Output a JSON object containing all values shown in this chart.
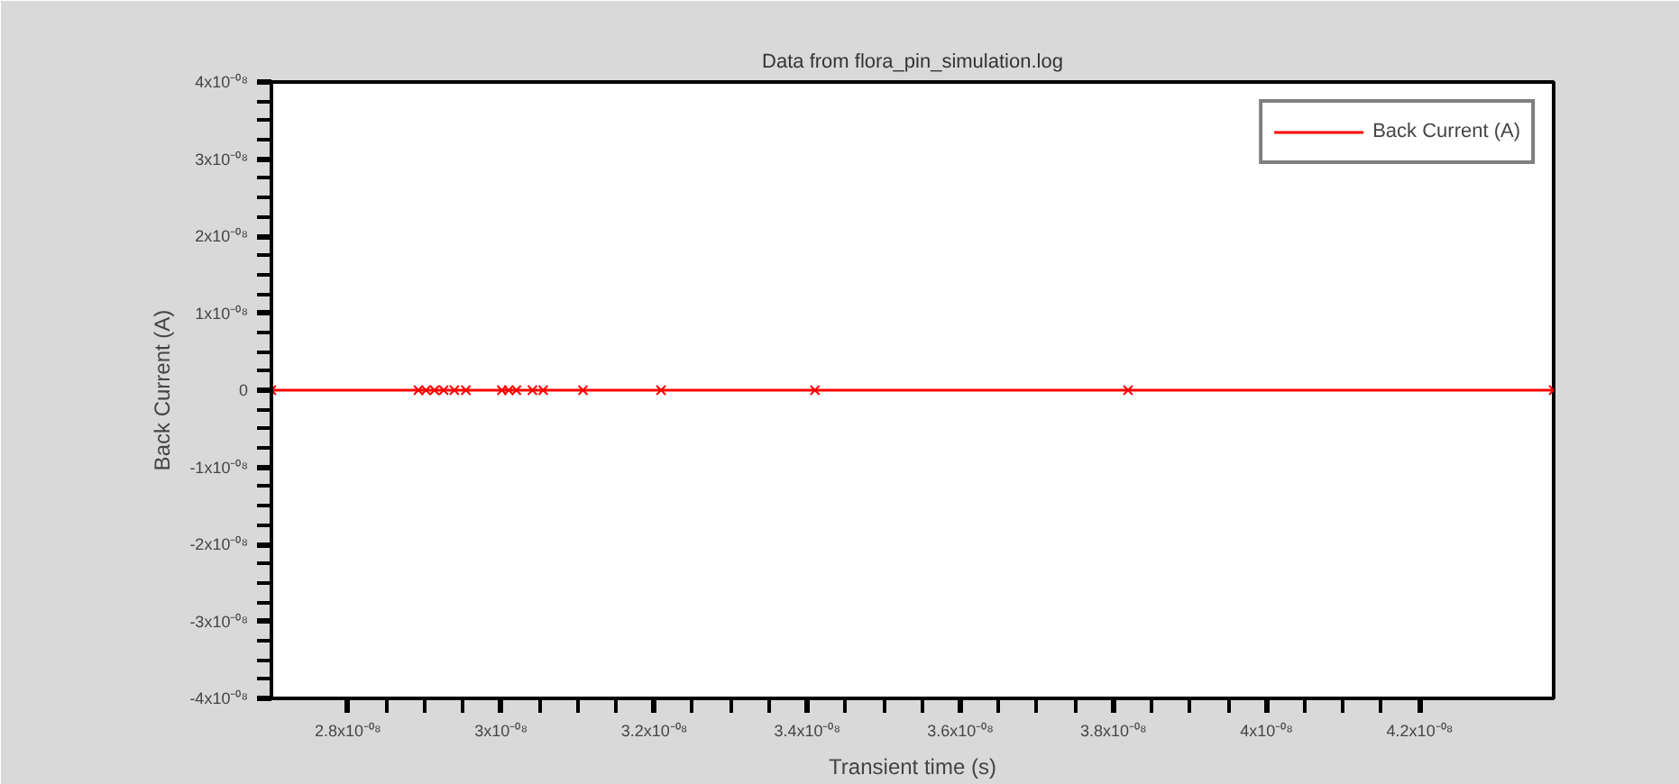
{
  "chart_data": {
    "type": "line",
    "title": "Data from flora_pin_simulation.log",
    "xlabel": "Transient time (s)",
    "ylabel": "Back Current (A)",
    "x": [
      2.7e-08,
      2.892e-08,
      2.902e-08,
      2.913e-08,
      2.925e-08,
      2.939e-08,
      2.954e-08,
      3.001e-08,
      3.01e-08,
      3.02e-08,
      3.041e-08,
      3.055e-08,
      3.107e-08,
      3.209e-08,
      3.41e-08,
      3.819e-08,
      4.375e-08
    ],
    "series": [
      {
        "name": "Back Current (A)",
        "color": "#ff0000",
        "values": [
          0,
          0,
          0,
          0,
          0,
          0,
          0,
          0,
          0,
          0,
          0,
          0,
          0,
          0,
          0,
          0,
          0
        ]
      }
    ],
    "xlim": [
      2.7e-08,
      4.375e-08
    ],
    "xticks": [
      {
        "value": 2.8e-08,
        "label": "2.8x10⁻⁰⁸"
      },
      {
        "value": 3e-08,
        "label": "3x10⁻⁰⁸"
      },
      {
        "value": 3.2e-08,
        "label": "3.2x10⁻⁰⁸"
      },
      {
        "value": 3.4e-08,
        "label": "3.4x10⁻⁰⁸"
      },
      {
        "value": 3.6e-08,
        "label": "3.6x10⁻⁰⁸"
      },
      {
        "value": 3.8e-08,
        "label": "3.8x10⁻⁰⁸"
      },
      {
        "value": 4e-08,
        "label": "4x10⁻⁰⁸"
      },
      {
        "value": 4.2e-08,
        "label": "4.2x10⁻⁰⁸"
      }
    ],
    "ylim": [
      -4e-08,
      4e-08
    ],
    "yticks": [
      {
        "value": -4e-08,
        "label": "-4x10⁻⁰⁸"
      },
      {
        "value": -3e-08,
        "label": "-3x10⁻⁰⁸"
      },
      {
        "value": -2e-08,
        "label": "-2x10⁻⁰⁸"
      },
      {
        "value": -1e-08,
        "label": "-1x10⁻⁰⁸"
      },
      0,
      {
        "value": 1e-08,
        "label": "1x10⁻⁰⁸"
      },
      {
        "value": 2e-08,
        "label": "2x10⁻⁰⁸"
      },
      {
        "value": 3e-08,
        "label": "3x10⁻⁰⁸"
      },
      {
        "value": 4e-08,
        "label": "4x10⁻⁰⁸"
      }
    ],
    "grid": false,
    "legend": "top right",
    "marker": "cross",
    "line_style": "solid"
  }
}
